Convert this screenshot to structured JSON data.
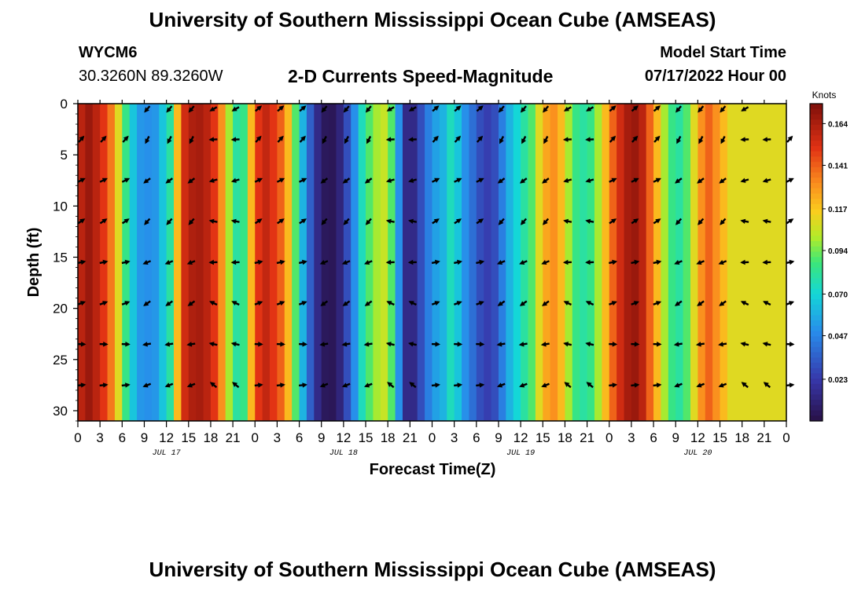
{
  "header": {
    "title": "University of Southern Mississippi Ocean Cube (AMSEAS)",
    "station_id": "WYCM6",
    "station_coords": "30.3260N  89.3260W",
    "plot_title": "2-D Currents Speed-Magnitude",
    "model_start_label": "Model Start Time",
    "model_start_value": "07/17/2022 Hour 00"
  },
  "footer": {
    "title": "University of Southern Mississippi Ocean Cube (AMSEAS)"
  },
  "chart_data": {
    "type": "heatmap",
    "title": "2-D Currents Speed-Magnitude",
    "xlabel": "Forecast Time(Z)",
    "ylabel": "Depth (ft)",
    "xlim": [
      0,
      96
    ],
    "ylim": [
      31,
      0
    ],
    "x_tick_values": [
      0,
      3,
      6,
      9,
      12,
      15,
      18,
      21,
      24,
      27,
      30,
      33,
      36,
      39,
      42,
      45,
      48,
      51,
      54,
      57,
      60,
      63,
      66,
      69,
      72,
      75,
      78,
      81,
      84,
      87,
      90,
      93,
      96
    ],
    "x_tick_labels": [
      "0",
      "3",
      "6",
      "9",
      "12",
      "15",
      "18",
      "21",
      "0",
      "3",
      "6",
      "9",
      "12",
      "15",
      "18",
      "21",
      "0",
      "3",
      "6",
      "9",
      "12",
      "15",
      "18",
      "21",
      "0",
      "3",
      "6",
      "9",
      "12",
      "15",
      "18",
      "21",
      "0"
    ],
    "date_labels": [
      {
        "hour": 12,
        "label": "JUL 17"
      },
      {
        "hour": 36,
        "label": "JUL 18"
      },
      {
        "hour": 60,
        "label": "JUL 19"
      },
      {
        "hour": 84,
        "label": "JUL 20"
      }
    ],
    "y_ticks": [
      0,
      5,
      10,
      15,
      20,
      25,
      30
    ],
    "colorbar": {
      "units": "Knots",
      "min": 0.0,
      "max": 0.175,
      "ticks": [
        0.164,
        0.141,
        0.117,
        0.094,
        0.07,
        0.047,
        0.023
      ],
      "tick_labels": [
        "0.164",
        "0.141",
        "0.117",
        "0.094",
        "0.070",
        "0.047",
        "0.023"
      ]
    },
    "speed_profile_by_hour": [
      {
        "hour": 0,
        "value": 0.16
      },
      {
        "hour": 1,
        "value": 0.168
      },
      {
        "hour": 2,
        "value": 0.16
      },
      {
        "hour": 3,
        "value": 0.15
      },
      {
        "hour": 4,
        "value": 0.135
      },
      {
        "hour": 5,
        "value": 0.11
      },
      {
        "hour": 6,
        "value": 0.085
      },
      {
        "hour": 7,
        "value": 0.065
      },
      {
        "hour": 8,
        "value": 0.052
      },
      {
        "hour": 9,
        "value": 0.05
      },
      {
        "hour": 10,
        "value": 0.052
      },
      {
        "hour": 11,
        "value": 0.065
      },
      {
        "hour": 12,
        "value": 0.08
      },
      {
        "hour": 13,
        "value": 0.12
      },
      {
        "hour": 14,
        "value": 0.155
      },
      {
        "hour": 15,
        "value": 0.163
      },
      {
        "hour": 16,
        "value": 0.165
      },
      {
        "hour": 17,
        "value": 0.16
      },
      {
        "hour": 18,
        "value": 0.15
      },
      {
        "hour": 19,
        "value": 0.13
      },
      {
        "hour": 20,
        "value": 0.1
      },
      {
        "hour": 21,
        "value": 0.08
      },
      {
        "hour": 22,
        "value": 0.085
      },
      {
        "hour": 23,
        "value": 0.12
      },
      {
        "hour": 24,
        "value": 0.15
      },
      {
        "hour": 25,
        "value": 0.158
      },
      {
        "hour": 26,
        "value": 0.15
      },
      {
        "hour": 27,
        "value": 0.14
      },
      {
        "hour": 28,
        "value": 0.12
      },
      {
        "hour": 29,
        "value": 0.09
      },
      {
        "hour": 30,
        "value": 0.06
      },
      {
        "hour": 31,
        "value": 0.035
      },
      {
        "hour": 32,
        "value": 0.015
      },
      {
        "hour": 33,
        "value": 0.005
      },
      {
        "hour": 34,
        "value": 0.004
      },
      {
        "hour": 35,
        "value": 0.012
      },
      {
        "hour": 36,
        "value": 0.03
      },
      {
        "hour": 37,
        "value": 0.05
      },
      {
        "hour": 38,
        "value": 0.075
      },
      {
        "hour": 39,
        "value": 0.09
      },
      {
        "hour": 40,
        "value": 0.1
      },
      {
        "hour": 41,
        "value": 0.105
      },
      {
        "hour": 42,
        "value": 0.09
      },
      {
        "hour": 43,
        "value": 0.05
      },
      {
        "hour": 44,
        "value": 0.015
      },
      {
        "hour": 45,
        "value": 0.015
      },
      {
        "hour": 46,
        "value": 0.03
      },
      {
        "hour": 47,
        "value": 0.045
      },
      {
        "hour": 48,
        "value": 0.055
      },
      {
        "hour": 49,
        "value": 0.06
      },
      {
        "hour": 50,
        "value": 0.075
      },
      {
        "hour": 51,
        "value": 0.065
      },
      {
        "hour": 52,
        "value": 0.05
      },
      {
        "hour": 53,
        "value": 0.04
      },
      {
        "hour": 54,
        "value": 0.03
      },
      {
        "hour": 55,
        "value": 0.025
      },
      {
        "hour": 56,
        "value": 0.03
      },
      {
        "hour": 57,
        "value": 0.045
      },
      {
        "hour": 58,
        "value": 0.06
      },
      {
        "hour": 59,
        "value": 0.07
      },
      {
        "hour": 60,
        "value": 0.08
      },
      {
        "hour": 61,
        "value": 0.09
      },
      {
        "hour": 62,
        "value": 0.11
      },
      {
        "hour": 63,
        "value": 0.125
      },
      {
        "hour": 64,
        "value": 0.13
      },
      {
        "hour": 65,
        "value": 0.12
      },
      {
        "hour": 66,
        "value": 0.1
      },
      {
        "hour": 67,
        "value": 0.085
      },
      {
        "hour": 68,
        "value": 0.08
      },
      {
        "hour": 69,
        "value": 0.085
      },
      {
        "hour": 70,
        "value": 0.1
      },
      {
        "hour": 71,
        "value": 0.12
      },
      {
        "hour": 72,
        "value": 0.14
      },
      {
        "hour": 73,
        "value": 0.155
      },
      {
        "hour": 74,
        "value": 0.165
      },
      {
        "hour": 75,
        "value": 0.168
      },
      {
        "hour": 76,
        "value": 0.16
      },
      {
        "hour": 77,
        "value": 0.14
      },
      {
        "hour": 78,
        "value": 0.12
      },
      {
        "hour": 79,
        "value": 0.1
      },
      {
        "hour": 80,
        "value": 0.085
      },
      {
        "hour": 81,
        "value": 0.08
      },
      {
        "hour": 82,
        "value": 0.09
      },
      {
        "hour": 83,
        "value": 0.11
      },
      {
        "hour": 84,
        "value": 0.13
      },
      {
        "hour": 85,
        "value": 0.14
      },
      {
        "hour": 86,
        "value": 0.13
      },
      {
        "hour": 87,
        "value": 0.12
      },
      {
        "hour": 88,
        "value": 0.11
      }
    ]
  }
}
